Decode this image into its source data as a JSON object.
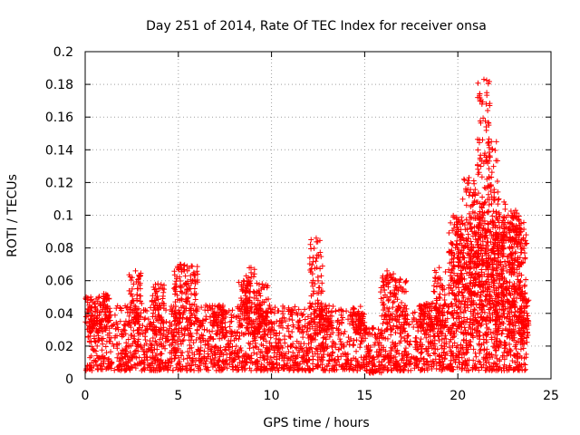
{
  "chart_data": {
    "type": "scatter",
    "title": "Day 251 of 2014, Rate Of TEC Index for receiver onsa",
    "xlabel": "GPS time / hours",
    "ylabel": "ROTI / TECUs",
    "xlim": [
      0,
      25
    ],
    "ylim": [
      0,
      0.2
    ],
    "xticks": [
      0,
      5,
      10,
      15,
      20,
      25
    ],
    "yticks": [
      0,
      0.02,
      0.04,
      0.06,
      0.08,
      0.1,
      0.12,
      0.14,
      0.16,
      0.18,
      0.2
    ],
    "xtick_labels": [
      "0",
      "5",
      "10",
      "15",
      "20",
      "25"
    ],
    "ytick_labels": [
      "0",
      "0.02",
      "0.04",
      "0.06",
      "0.08",
      "0.1",
      "0.12",
      "0.14",
      "0.16",
      "0.18",
      "0.2"
    ],
    "grid": true,
    "marker": "+",
    "color": "#ff0000",
    "x_range_hours": [
      0,
      23.8
    ],
    "series": [
      {
        "name": "ROTI",
        "baseline_band": [
          0.005,
          0.045
        ],
        "peaks": [
          {
            "x": 0.3,
            "y": 0.05
          },
          {
            "x": 1.0,
            "y": 0.052
          },
          {
            "x": 2.7,
            "y": 0.066
          },
          {
            "x": 3.9,
            "y": 0.058
          },
          {
            "x": 5.1,
            "y": 0.07
          },
          {
            "x": 5.7,
            "y": 0.069
          },
          {
            "x": 7.2,
            "y": 0.045
          },
          {
            "x": 8.5,
            "y": 0.06
          },
          {
            "x": 8.9,
            "y": 0.068
          },
          {
            "x": 9.5,
            "y": 0.058
          },
          {
            "x": 12.4,
            "y": 0.086
          },
          {
            "x": 12.9,
            "y": 0.045
          },
          {
            "x": 14.7,
            "y": 0.04
          },
          {
            "x": 16.2,
            "y": 0.066
          },
          {
            "x": 16.9,
            "y": 0.061
          },
          {
            "x": 18.3,
            "y": 0.046
          },
          {
            "x": 19.0,
            "y": 0.068
          },
          {
            "x": 20.0,
            "y": 0.09
          },
          {
            "x": 20.6,
            "y": 0.123
          },
          {
            "x": 21.0,
            "y": 0.108
          },
          {
            "x": 21.4,
            "y": 0.183
          },
          {
            "x": 21.8,
            "y": 0.145
          },
          {
            "x": 22.2,
            "y": 0.11
          },
          {
            "x": 22.7,
            "y": 0.1
          },
          {
            "x": 23.1,
            "y": 0.103
          },
          {
            "x": 23.6,
            "y": 0.052
          }
        ]
      }
    ]
  }
}
